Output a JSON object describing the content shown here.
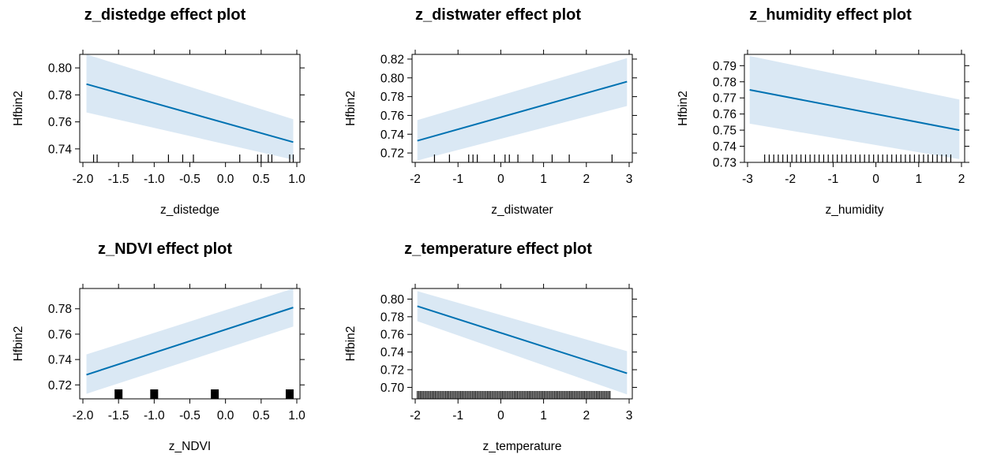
{
  "chart_data": [
    {
      "type": "line",
      "title": "z_distedge effect plot",
      "xlabel": "z_distedge",
      "ylabel": "Hfbin2",
      "xlim": [
        -2.0,
        1.0
      ],
      "ylim": [
        0.73,
        0.81
      ],
      "xticks": [
        "-2.0",
        "-1.5",
        "-1.0",
        "-0.5",
        "0.0",
        "0.5",
        "1.0"
      ],
      "yticks": [
        "0.74",
        "0.76",
        "0.78",
        "0.80"
      ],
      "x": [
        -1.95,
        0.95
      ],
      "fit": [
        0.788,
        0.745
      ],
      "lower": [
        0.767,
        0.732
      ],
      "upper": [
        0.81,
        0.762
      ],
      "rug": [
        -1.85,
        -1.8,
        -1.3,
        -0.8,
        -0.6,
        -0.45,
        0.2,
        0.45,
        0.5,
        0.6,
        0.65,
        0.9,
        0.95
      ]
    },
    {
      "type": "line",
      "title": "z_distwater effect plot",
      "xlabel": "z_distwater",
      "ylabel": "Hfbin2",
      "xlim": [
        -2,
        3
      ],
      "ylim": [
        0.71,
        0.825
      ],
      "xticks": [
        "-2",
        "-1",
        "0",
        "1",
        "2",
        "3"
      ],
      "yticks": [
        "0.72",
        "0.74",
        "0.76",
        "0.78",
        "0.80",
        "0.82"
      ],
      "x": [
        -1.95,
        2.95
      ],
      "fit": [
        0.733,
        0.796
      ],
      "lower": [
        0.712,
        0.77
      ],
      "upper": [
        0.755,
        0.821
      ],
      "rug": [
        -1.55,
        -1.2,
        -0.75,
        -0.65,
        -0.55,
        -0.15,
        0.1,
        0.2,
        0.4,
        0.75,
        1.2,
        1.6,
        2.6
      ]
    },
    {
      "type": "line",
      "title": "z_humidity effect plot",
      "xlabel": "z_humidity",
      "ylabel": "Hfbin2",
      "xlim": [
        -3,
        2
      ],
      "ylim": [
        0.73,
        0.797
      ],
      "xticks": [
        "-3",
        "-2",
        "-1",
        "0",
        "1",
        "2"
      ],
      "yticks": [
        "0.73",
        "0.74",
        "0.75",
        "0.76",
        "0.77",
        "0.78",
        "0.79"
      ],
      "x": [
        -2.95,
        1.95
      ],
      "fit": [
        0.775,
        0.75
      ],
      "lower": [
        0.754,
        0.732
      ],
      "upper": [
        0.796,
        0.769
      ],
      "rug_range": [
        -2.6,
        1.75
      ],
      "rug_count": 42
    },
    {
      "type": "line",
      "title": "z_NDVI effect plot",
      "xlabel": "z_NDVI",
      "ylabel": "Hfbin2",
      "xlim": [
        -2.0,
        1.0
      ],
      "ylim": [
        0.709,
        0.796
      ],
      "xticks": [
        "-2.0",
        "-1.5",
        "-1.0",
        "-0.5",
        "0.0",
        "0.5",
        "1.0"
      ],
      "yticks": [
        "0.72",
        "0.74",
        "0.76",
        "0.78"
      ],
      "x": [
        -1.95,
        0.95
      ],
      "fit": [
        0.728,
        0.781
      ],
      "lower": [
        0.713,
        0.766
      ],
      "upper": [
        0.744,
        0.796
      ],
      "rug_blocks": [
        -1.5,
        -1.0,
        -0.15,
        0.9
      ]
    },
    {
      "type": "line",
      "title": "z_temperature effect plot",
      "xlabel": "z_temperature",
      "ylabel": "Hfbin2",
      "xlim": [
        -2,
        3
      ],
      "ylim": [
        0.687,
        0.812
      ],
      "xticks": [
        "-2",
        "-1",
        "0",
        "1",
        "2",
        "3"
      ],
      "yticks": [
        "0.70",
        "0.72",
        "0.74",
        "0.76",
        "0.78",
        "0.80"
      ],
      "x": [
        -1.95,
        2.95
      ],
      "fit": [
        0.792,
        0.716
      ],
      "lower": [
        0.775,
        0.692
      ],
      "upper": [
        0.809,
        0.741
      ],
      "rug_range": [
        -1.95,
        2.55
      ],
      "rug_count": 130
    }
  ],
  "colors": {
    "line": "#0072B2",
    "band": "#DAE8F4",
    "axis": "#000000"
  }
}
